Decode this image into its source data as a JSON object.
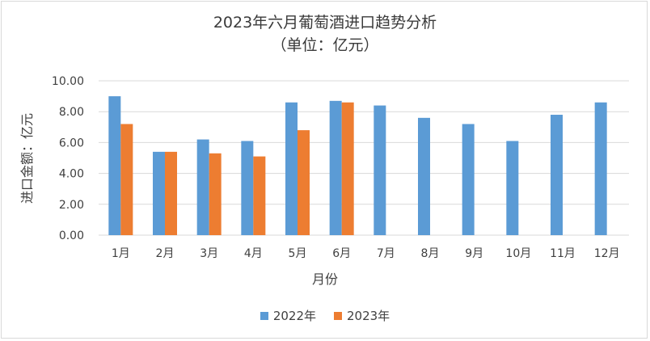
{
  "chart_data": {
    "type": "bar",
    "title": "2023年六月葡萄酒进口趋势分析",
    "subtitle": "（单位：亿元）",
    "xlabel": "月份",
    "ylabel": "进口金额：亿元",
    "categories": [
      "1月",
      "2月",
      "3月",
      "4月",
      "5月",
      "6月",
      "7月",
      "8月",
      "9月",
      "10月",
      "11月",
      "12月"
    ],
    "ylim": [
      0,
      10
    ],
    "yticks": [
      "0.00",
      "2.00",
      "4.00",
      "6.00",
      "8.00",
      "10.00"
    ],
    "grid": true,
    "legend_position": "bottom",
    "series": [
      {
        "name": "2022年",
        "color": "#5b9bd5",
        "values": [
          9.0,
          5.4,
          6.2,
          6.1,
          8.6,
          8.7,
          8.4,
          7.6,
          7.2,
          6.1,
          7.8,
          8.6
        ]
      },
      {
        "name": "2023年",
        "color": "#ed7d31",
        "values": [
          7.2,
          5.4,
          5.3,
          5.1,
          6.8,
          8.6,
          null,
          null,
          null,
          null,
          null,
          null
        ]
      }
    ]
  }
}
